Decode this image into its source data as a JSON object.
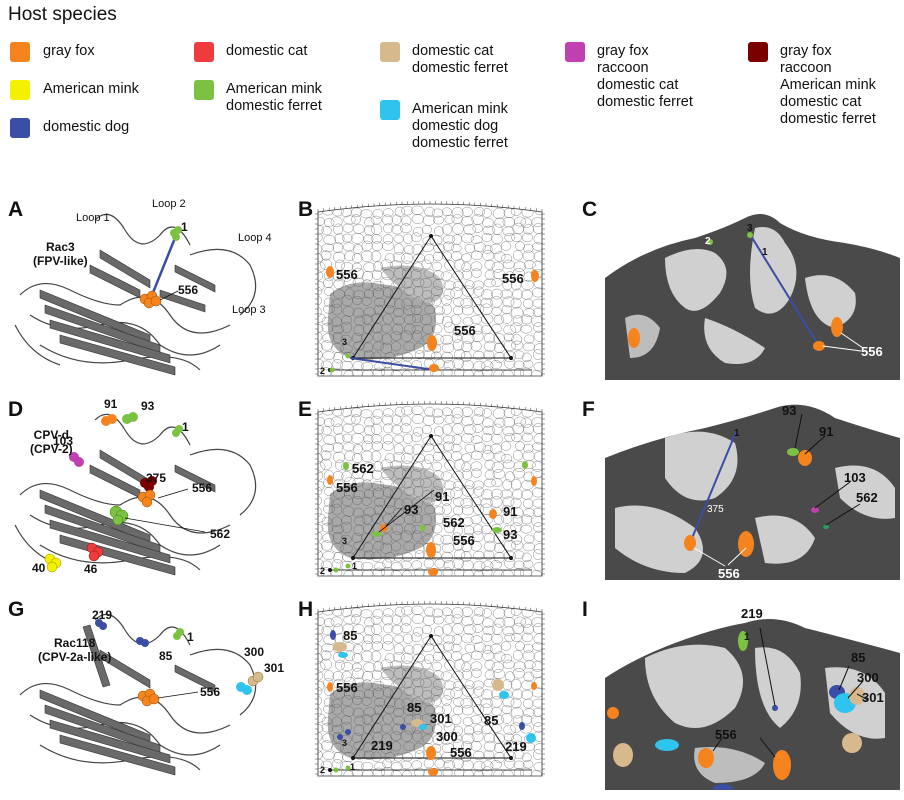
{
  "legend": {
    "title": "Host species",
    "items": [
      {
        "label": "gray fox",
        "color": "#f5841f"
      },
      {
        "label": "American mink",
        "color": "#f5f000"
      },
      {
        "label": "domestic dog",
        "color": "#3a4ea6"
      },
      {
        "label": "domestic cat",
        "color": "#ee3b3b"
      },
      {
        "label": "American mink\ndomestic ferret",
        "color": "#7cc242"
      },
      {
        "label": "domestic cat\ndomestic ferret",
        "color": "#d7b98e"
      },
      {
        "label": "American mink\ndomestic dog\ndomestic ferret",
        "color": "#2ec4ee"
      },
      {
        "label": "gray fox\nraccoon\ndomestic cat\ndomestic ferret",
        "color": "#c040b0"
      },
      {
        "label": "gray fox\nraccoon\nAmerican mink\ndomestic cat\ndomestic ferret",
        "color": "#7a0000"
      }
    ]
  },
  "panels": {
    "A": {
      "letter": "A",
      "title": "Rac3\n(FPV-like)",
      "loops": [
        "Loop 1",
        "Loop 2",
        "Loop 3",
        "Loop 4"
      ],
      "residues": [
        "1",
        "556"
      ]
    },
    "B": {
      "letter": "B",
      "residues": [
        "556",
        "556",
        "556",
        "3",
        "2"
      ]
    },
    "C": {
      "letter": "C",
      "residues": [
        "2",
        "3",
        "1",
        "556"
      ]
    },
    "D": {
      "letter": "D",
      "title": "CPV-d\n(CPV-2)",
      "residues": [
        "91",
        "93",
        "1",
        "103",
        "375",
        "556",
        "562",
        "40",
        "46"
      ]
    },
    "E": {
      "letter": "E",
      "residues": [
        "562",
        "556",
        "93",
        "91",
        "562",
        "556",
        "91",
        "93",
        "3",
        "2",
        "1"
      ]
    },
    "F": {
      "letter": "F",
      "residues": [
        "1",
        "93",
        "91",
        "103",
        "562",
        "375",
        "556"
      ]
    },
    "G": {
      "letter": "G",
      "title": "Rac118\n(CPV-2a-like)",
      "residues": [
        "219",
        "1",
        "85",
        "300",
        "301",
        "556"
      ]
    },
    "H": {
      "letter": "H",
      "residues": [
        "85",
        "556",
        "85",
        "301",
        "300",
        "219",
        "556",
        "85",
        "219",
        "3",
        "2",
        "1"
      ]
    },
    "I": {
      "letter": "I",
      "residues": [
        "219",
        "1",
        "85",
        "300",
        "301",
        "556"
      ]
    }
  }
}
